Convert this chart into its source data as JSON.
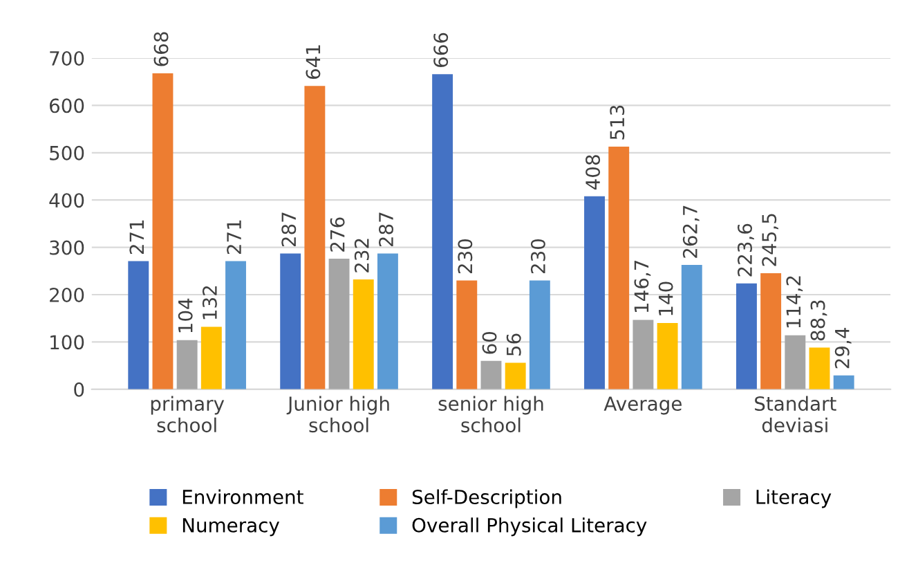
{
  "chart_data": {
    "type": "bar",
    "categories": [
      "primary school",
      "Junior high school",
      "senior high school",
      "Average",
      "Standart deviasi"
    ],
    "series": [
      {
        "name": "Environment",
        "color": "#4472c4",
        "values": [
          271,
          287,
          666,
          408,
          223.6
        ],
        "value_labels": [
          "271",
          "287",
          "666",
          "408",
          "223,6"
        ]
      },
      {
        "name": "Self-Description",
        "color": "#ed7d31",
        "values": [
          668,
          641,
          230,
          513,
          245.5
        ],
        "value_labels": [
          "668",
          "641",
          "230",
          "513",
          "245,5"
        ]
      },
      {
        "name": "Literacy",
        "color": "#a5a5a5",
        "values": [
          104,
          276,
          60,
          146.7,
          114.2
        ],
        "value_labels": [
          "104",
          "276",
          "60",
          "146,7",
          "114,2"
        ]
      },
      {
        "name": "Numeracy",
        "color": "#ffc000",
        "values": [
          132,
          232,
          56,
          140,
          88.3
        ],
        "value_labels": [
          "132",
          "232",
          "56",
          "140",
          "88,3"
        ]
      },
      {
        "name": "Overall Physical Literacy",
        "color": "#5b9bd5",
        "values": [
          271,
          287,
          230,
          262.7,
          29.4
        ],
        "value_labels": [
          "271",
          "287",
          "230",
          "262,7",
          "29,4"
        ]
      }
    ],
    "ylim": [
      0,
      700
    ],
    "yticks": [
      0,
      100,
      200,
      300,
      400,
      500,
      600,
      700
    ],
    "grid": "y",
    "legend": "bottom"
  }
}
